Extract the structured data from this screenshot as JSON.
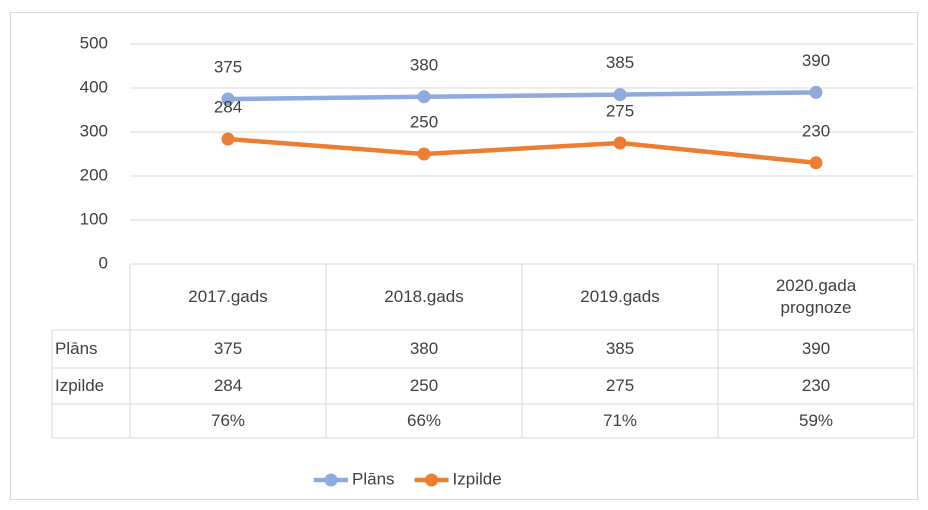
{
  "chart_data": {
    "type": "line",
    "categories": [
      "2017.gads",
      "2018.gads",
      "2019.gads",
      "2020.gada prognoze"
    ],
    "series": [
      {
        "name": "Plāns",
        "color": "#8faadc",
        "values": [
          375,
          380,
          385,
          390
        ]
      },
      {
        "name": "Izpilde",
        "color": "#ed7d31",
        "values": [
          284,
          250,
          275,
          230
        ]
      }
    ],
    "table_extra_row": {
      "values": [
        76,
        66,
        71,
        59
      ],
      "value_labels": [
        "76%",
        "66%",
        "71%",
        "59%"
      ]
    },
    "ylim": [
      0,
      500
    ],
    "yticks": [
      0,
      100,
      200,
      300,
      400,
      500
    ],
    "grid": true,
    "legend": "bottom"
  }
}
